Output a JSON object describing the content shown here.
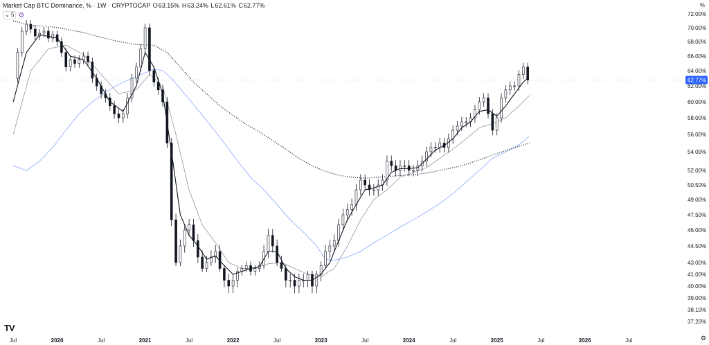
{
  "header": {
    "symbol": "Market Cap BTC Dominance, % · 1W · CRYPTOCAP",
    "o_label": "O",
    "o_value": "63.15%",
    "h_label": "H",
    "h_value": "63.24%",
    "l_label": "L",
    "l_value": "62.61%",
    "c_label": "C",
    "c_value": "62.77%"
  },
  "indicator_chip": "5",
  "scale_unit": "%",
  "current_price_label": "62.77%",
  "colors": {
    "candle": "#131722",
    "ma_fast": "#131722",
    "ma_slow": "#9598a1",
    "ma_blue": "#2962ff",
    "ma_dotted": "#131722",
    "price_tag": "#2962ff",
    "grid": "#f0f3fa"
  },
  "chart_data": {
    "type": "candlestick",
    "y_ticks": [
      "72.00%",
      "70.00%",
      "68.00%",
      "66.00%",
      "64.00%",
      "62.00%",
      "60.00%",
      "58.00%",
      "56.00%",
      "54.00%",
      "52.00%",
      "50.50%",
      "49.00%",
      "47.50%",
      "46.00%",
      "44.50%",
      "43.00%",
      "41.00%",
      "40.00%",
      "39.00%",
      "38.10%",
      "37.20%"
    ],
    "x_ticks": [
      "Jul",
      "2020",
      "Jul",
      "2021",
      "Jul",
      "2022",
      "Jul",
      "2023",
      "Jul",
      "2024",
      "Jul",
      "2025",
      "Jul",
      "2026",
      "Jul"
    ],
    "current_value": 62.77,
    "close_series": [
      {
        "t": 2019.5,
        "v": 63.0
      },
      {
        "t": 2019.55,
        "v": 66.5
      },
      {
        "t": 2019.6,
        "v": 69.5
      },
      {
        "t": 2019.65,
        "v": 70.5
      },
      {
        "t": 2019.7,
        "v": 69.8
      },
      {
        "t": 2019.75,
        "v": 68.8
      },
      {
        "t": 2019.8,
        "v": 69.2
      },
      {
        "t": 2019.85,
        "v": 69.5
      },
      {
        "t": 2019.9,
        "v": 68.5
      },
      {
        "t": 2019.95,
        "v": 69.0
      },
      {
        "t": 2020.0,
        "v": 68.0
      },
      {
        "t": 2020.05,
        "v": 66.5
      },
      {
        "t": 2020.1,
        "v": 64.5
      },
      {
        "t": 2020.15,
        "v": 65.5
      },
      {
        "t": 2020.2,
        "v": 65.0
      },
      {
        "t": 2020.25,
        "v": 65.5
      },
      {
        "t": 2020.3,
        "v": 66.0
      },
      {
        "t": 2020.35,
        "v": 65.2
      },
      {
        "t": 2020.4,
        "v": 63.0
      },
      {
        "t": 2020.45,
        "v": 62.0
      },
      {
        "t": 2020.5,
        "v": 61.0
      },
      {
        "t": 2020.55,
        "v": 60.5
      },
      {
        "t": 2020.6,
        "v": 59.5
      },
      {
        "t": 2020.65,
        "v": 58.5
      },
      {
        "t": 2020.7,
        "v": 58.0
      },
      {
        "t": 2020.75,
        "v": 58.5
      },
      {
        "t": 2020.8,
        "v": 60.5
      },
      {
        "t": 2020.85,
        "v": 63.0
      },
      {
        "t": 2020.9,
        "v": 64.5
      },
      {
        "t": 2020.95,
        "v": 67.0
      },
      {
        "t": 2021.0,
        "v": 70.0
      },
      {
        "t": 2021.05,
        "v": 64.0
      },
      {
        "t": 2021.1,
        "v": 62.5
      },
      {
        "t": 2021.15,
        "v": 61.5
      },
      {
        "t": 2021.2,
        "v": 60.0
      },
      {
        "t": 2021.25,
        "v": 55.0
      },
      {
        "t": 2021.3,
        "v": 47.0
      },
      {
        "t": 2021.35,
        "v": 43.0
      },
      {
        "t": 2021.4,
        "v": 44.5
      },
      {
        "t": 2021.45,
        "v": 46.0
      },
      {
        "t": 2021.5,
        "v": 46.5
      },
      {
        "t": 2021.55,
        "v": 45.0
      },
      {
        "t": 2021.6,
        "v": 43.5
      },
      {
        "t": 2021.65,
        "v": 42.0
      },
      {
        "t": 2021.7,
        "v": 43.0
      },
      {
        "t": 2021.75,
        "v": 43.5
      },
      {
        "t": 2021.8,
        "v": 44.0
      },
      {
        "t": 2021.85,
        "v": 42.0
      },
      {
        "t": 2021.9,
        "v": 40.5
      },
      {
        "t": 2021.95,
        "v": 40.0
      },
      {
        "t": 2022.0,
        "v": 40.5
      },
      {
        "t": 2022.05,
        "v": 41.5
      },
      {
        "t": 2022.1,
        "v": 42.0
      },
      {
        "t": 2022.15,
        "v": 42.5
      },
      {
        "t": 2022.2,
        "v": 41.5
      },
      {
        "t": 2022.25,
        "v": 42.0
      },
      {
        "t": 2022.3,
        "v": 42.5
      },
      {
        "t": 2022.35,
        "v": 44.0
      },
      {
        "t": 2022.4,
        "v": 45.5
      },
      {
        "t": 2022.45,
        "v": 44.5
      },
      {
        "t": 2022.5,
        "v": 43.0
      },
      {
        "t": 2022.55,
        "v": 42.0
      },
      {
        "t": 2022.6,
        "v": 40.5
      },
      {
        "t": 2022.65,
        "v": 40.5
      },
      {
        "t": 2022.7,
        "v": 40.0
      },
      {
        "t": 2022.75,
        "v": 40.5
      },
      {
        "t": 2022.8,
        "v": 40.5
      },
      {
        "t": 2022.85,
        "v": 41.0
      },
      {
        "t": 2022.9,
        "v": 40.0
      },
      {
        "t": 2022.95,
        "v": 41.0
      },
      {
        "t": 2023.0,
        "v": 42.5
      },
      {
        "t": 2023.05,
        "v": 44.0
      },
      {
        "t": 2023.1,
        "v": 44.5
      },
      {
        "t": 2023.15,
        "v": 45.0
      },
      {
        "t": 2023.2,
        "v": 46.5
      },
      {
        "t": 2023.25,
        "v": 47.5
      },
      {
        "t": 2023.3,
        "v": 48.0
      },
      {
        "t": 2023.35,
        "v": 48.5
      },
      {
        "t": 2023.4,
        "v": 50.0
      },
      {
        "t": 2023.45,
        "v": 51.0
      },
      {
        "t": 2023.5,
        "v": 50.5
      },
      {
        "t": 2023.55,
        "v": 50.0
      },
      {
        "t": 2023.6,
        "v": 50.0
      },
      {
        "t": 2023.65,
        "v": 50.5
      },
      {
        "t": 2023.7,
        "v": 51.0
      },
      {
        "t": 2023.75,
        "v": 53.0
      },
      {
        "t": 2023.8,
        "v": 52.5
      },
      {
        "t": 2023.85,
        "v": 52.0
      },
      {
        "t": 2023.9,
        "v": 52.5
      },
      {
        "t": 2023.95,
        "v": 52.5
      },
      {
        "t": 2024.0,
        "v": 52.0
      },
      {
        "t": 2024.05,
        "v": 52.0
      },
      {
        "t": 2024.1,
        "v": 52.5
      },
      {
        "t": 2024.15,
        "v": 53.0
      },
      {
        "t": 2024.2,
        "v": 54.0
      },
      {
        "t": 2024.25,
        "v": 54.5
      },
      {
        "t": 2024.3,
        "v": 54.5
      },
      {
        "t": 2024.35,
        "v": 55.0
      },
      {
        "t": 2024.4,
        "v": 54.5
      },
      {
        "t": 2024.45,
        "v": 55.5
      },
      {
        "t": 2024.5,
        "v": 56.5
      },
      {
        "t": 2024.55,
        "v": 57.0
      },
      {
        "t": 2024.6,
        "v": 57.5
      },
      {
        "t": 2024.65,
        "v": 57.5
      },
      {
        "t": 2024.7,
        "v": 58.0
      },
      {
        "t": 2024.75,
        "v": 59.0
      },
      {
        "t": 2024.8,
        "v": 60.0
      },
      {
        "t": 2024.85,
        "v": 60.5
      },
      {
        "t": 2024.9,
        "v": 58.5
      },
      {
        "t": 2024.95,
        "v": 56.5
      },
      {
        "t": 2025.0,
        "v": 58.0
      },
      {
        "t": 2025.05,
        "v": 60.5
      },
      {
        "t": 2025.1,
        "v": 61.5
      },
      {
        "t": 2025.15,
        "v": 62.0
      },
      {
        "t": 2025.2,
        "v": 62.0
      },
      {
        "t": 2025.25,
        "v": 63.5
      },
      {
        "t": 2025.3,
        "v": 64.5
      },
      {
        "t": 2025.35,
        "v": 62.77
      }
    ],
    "ma_fast": [
      {
        "t": 2019.5,
        "v": 60.0
      },
      {
        "t": 2019.65,
        "v": 66.5
      },
      {
        "t": 2019.8,
        "v": 69.0
      },
      {
        "t": 2020.0,
        "v": 68.5
      },
      {
        "t": 2020.15,
        "v": 66.0
      },
      {
        "t": 2020.3,
        "v": 65.5
      },
      {
        "t": 2020.45,
        "v": 63.0
      },
      {
        "t": 2020.6,
        "v": 60.0
      },
      {
        "t": 2020.75,
        "v": 58.8
      },
      {
        "t": 2020.9,
        "v": 62.0
      },
      {
        "t": 2021.0,
        "v": 66.5
      },
      {
        "t": 2021.1,
        "v": 64.5
      },
      {
        "t": 2021.2,
        "v": 61.0
      },
      {
        "t": 2021.3,
        "v": 54.0
      },
      {
        "t": 2021.4,
        "v": 47.5
      },
      {
        "t": 2021.5,
        "v": 45.5
      },
      {
        "t": 2021.6,
        "v": 44.5
      },
      {
        "t": 2021.7,
        "v": 43.3
      },
      {
        "t": 2021.8,
        "v": 43.6
      },
      {
        "t": 2021.9,
        "v": 42.5
      },
      {
        "t": 2022.0,
        "v": 41.0
      },
      {
        "t": 2022.1,
        "v": 41.5
      },
      {
        "t": 2022.2,
        "v": 42.0
      },
      {
        "t": 2022.3,
        "v": 42.3
      },
      {
        "t": 2022.4,
        "v": 44.0
      },
      {
        "t": 2022.5,
        "v": 44.0
      },
      {
        "t": 2022.6,
        "v": 42.0
      },
      {
        "t": 2022.7,
        "v": 40.8
      },
      {
        "t": 2022.8,
        "v": 40.5
      },
      {
        "t": 2022.9,
        "v": 40.5
      },
      {
        "t": 2023.0,
        "v": 41.0
      },
      {
        "t": 2023.1,
        "v": 43.0
      },
      {
        "t": 2023.2,
        "v": 45.0
      },
      {
        "t": 2023.3,
        "v": 47.0
      },
      {
        "t": 2023.4,
        "v": 48.5
      },
      {
        "t": 2023.5,
        "v": 50.0
      },
      {
        "t": 2023.6,
        "v": 50.2
      },
      {
        "t": 2023.7,
        "v": 50.5
      },
      {
        "t": 2023.8,
        "v": 51.8
      },
      {
        "t": 2023.9,
        "v": 52.2
      },
      {
        "t": 2024.0,
        "v": 52.2
      },
      {
        "t": 2024.1,
        "v": 52.3
      },
      {
        "t": 2024.2,
        "v": 53.2
      },
      {
        "t": 2024.3,
        "v": 54.2
      },
      {
        "t": 2024.4,
        "v": 54.7
      },
      {
        "t": 2024.5,
        "v": 55.5
      },
      {
        "t": 2024.6,
        "v": 56.8
      },
      {
        "t": 2024.7,
        "v": 57.5
      },
      {
        "t": 2024.8,
        "v": 58.8
      },
      {
        "t": 2024.9,
        "v": 59.0
      },
      {
        "t": 2025.0,
        "v": 58.2
      },
      {
        "t": 2025.1,
        "v": 59.5
      },
      {
        "t": 2025.2,
        "v": 61.0
      },
      {
        "t": 2025.3,
        "v": 62.5
      },
      {
        "t": 2025.35,
        "v": 63.0
      }
    ],
    "ma_slow": [
      {
        "t": 2019.5,
        "v": 56.0
      },
      {
        "t": 2019.7,
        "v": 64.0
      },
      {
        "t": 2019.9,
        "v": 67.0
      },
      {
        "t": 2020.1,
        "v": 67.5
      },
      {
        "t": 2020.3,
        "v": 66.2
      },
      {
        "t": 2020.5,
        "v": 63.5
      },
      {
        "t": 2020.7,
        "v": 61.0
      },
      {
        "t": 2020.9,
        "v": 61.5
      },
      {
        "t": 2021.05,
        "v": 63.5
      },
      {
        "t": 2021.2,
        "v": 62.0
      },
      {
        "t": 2021.35,
        "v": 56.0
      },
      {
        "t": 2021.5,
        "v": 50.0
      },
      {
        "t": 2021.65,
        "v": 46.5
      },
      {
        "t": 2021.8,
        "v": 44.8
      },
      {
        "t": 2021.95,
        "v": 43.0
      },
      {
        "t": 2022.1,
        "v": 42.0
      },
      {
        "t": 2022.25,
        "v": 42.0
      },
      {
        "t": 2022.4,
        "v": 42.8
      },
      {
        "t": 2022.55,
        "v": 43.0
      },
      {
        "t": 2022.7,
        "v": 42.0
      },
      {
        "t": 2022.85,
        "v": 41.0
      },
      {
        "t": 2023.0,
        "v": 40.8
      },
      {
        "t": 2023.15,
        "v": 42.0
      },
      {
        "t": 2023.3,
        "v": 44.5
      },
      {
        "t": 2023.45,
        "v": 47.0
      },
      {
        "t": 2023.6,
        "v": 49.0
      },
      {
        "t": 2023.75,
        "v": 50.0
      },
      {
        "t": 2023.9,
        "v": 51.3
      },
      {
        "t": 2024.05,
        "v": 51.8
      },
      {
        "t": 2024.2,
        "v": 52.3
      },
      {
        "t": 2024.35,
        "v": 53.3
      },
      {
        "t": 2024.5,
        "v": 54.3
      },
      {
        "t": 2024.65,
        "v": 55.5
      },
      {
        "t": 2024.8,
        "v": 56.8
      },
      {
        "t": 2024.95,
        "v": 57.3
      },
      {
        "t": 2025.1,
        "v": 58.0
      },
      {
        "t": 2025.25,
        "v": 59.5
      },
      {
        "t": 2025.37,
        "v": 60.8
      }
    ],
    "ma_blue": [
      {
        "t": 2019.5,
        "v": 52.5
      },
      {
        "t": 2019.65,
        "v": 52.0
      },
      {
        "t": 2019.8,
        "v": 53.0
      },
      {
        "t": 2019.95,
        "v": 54.5
      },
      {
        "t": 2020.1,
        "v": 56.5
      },
      {
        "t": 2020.25,
        "v": 58.5
      },
      {
        "t": 2020.4,
        "v": 60.0
      },
      {
        "t": 2020.55,
        "v": 61.2
      },
      {
        "t": 2020.7,
        "v": 62.2
      },
      {
        "t": 2020.85,
        "v": 63.0
      },
      {
        "t": 2021.0,
        "v": 63.7
      },
      {
        "t": 2021.1,
        "v": 64.2
      },
      {
        "t": 2021.2,
        "v": 64.0
      },
      {
        "t": 2021.3,
        "v": 63.0
      },
      {
        "t": 2021.45,
        "v": 61.0
      },
      {
        "t": 2021.6,
        "v": 59.0
      },
      {
        "t": 2021.75,
        "v": 57.0
      },
      {
        "t": 2021.9,
        "v": 55.0
      },
      {
        "t": 2022.05,
        "v": 53.0
      },
      {
        "t": 2022.2,
        "v": 51.3
      },
      {
        "t": 2022.35,
        "v": 50.0
      },
      {
        "t": 2022.5,
        "v": 48.5
      },
      {
        "t": 2022.65,
        "v": 47.0
      },
      {
        "t": 2022.8,
        "v": 45.8
      },
      {
        "t": 2022.95,
        "v": 44.5
      },
      {
        "t": 2023.05,
        "v": 43.3
      },
      {
        "t": 2023.15,
        "v": 43.2
      },
      {
        "t": 2023.3,
        "v": 43.5
      },
      {
        "t": 2023.45,
        "v": 44.0
      },
      {
        "t": 2023.6,
        "v": 44.8
      },
      {
        "t": 2023.75,
        "v": 45.5
      },
      {
        "t": 2023.9,
        "v": 46.3
      },
      {
        "t": 2024.05,
        "v": 47.0
      },
      {
        "t": 2024.2,
        "v": 47.8
      },
      {
        "t": 2024.35,
        "v": 48.6
      },
      {
        "t": 2024.5,
        "v": 49.6
      },
      {
        "t": 2024.65,
        "v": 50.8
      },
      {
        "t": 2024.8,
        "v": 52.0
      },
      {
        "t": 2024.95,
        "v": 53.3
      },
      {
        "t": 2025.1,
        "v": 54.0
      },
      {
        "t": 2025.25,
        "v": 54.8
      },
      {
        "t": 2025.37,
        "v": 55.8
      }
    ],
    "ma_dotted": [
      {
        "t": 2019.5,
        "v": 71.0
      },
      {
        "t": 2019.7,
        "v": 70.3
      },
      {
        "t": 2019.9,
        "v": 70.2
      },
      {
        "t": 2020.1,
        "v": 69.8
      },
      {
        "t": 2020.3,
        "v": 69.3
      },
      {
        "t": 2020.5,
        "v": 68.6
      },
      {
        "t": 2020.7,
        "v": 68.0
      },
      {
        "t": 2020.9,
        "v": 67.6
      },
      {
        "t": 2021.1,
        "v": 67.5
      },
      {
        "t": 2021.25,
        "v": 66.5
      },
      {
        "t": 2021.4,
        "v": 64.5
      },
      {
        "t": 2021.55,
        "v": 62.5
      },
      {
        "t": 2021.7,
        "v": 61.0
      },
      {
        "t": 2021.85,
        "v": 59.5
      },
      {
        "t": 2022.0,
        "v": 58.3
      },
      {
        "t": 2022.15,
        "v": 57.2
      },
      {
        "t": 2022.3,
        "v": 56.3
      },
      {
        "t": 2022.45,
        "v": 55.3
      },
      {
        "t": 2022.6,
        "v": 54.3
      },
      {
        "t": 2022.75,
        "v": 53.3
      },
      {
        "t": 2022.9,
        "v": 52.5
      },
      {
        "t": 2023.05,
        "v": 51.9
      },
      {
        "t": 2023.2,
        "v": 51.5
      },
      {
        "t": 2023.35,
        "v": 51.3
      },
      {
        "t": 2023.5,
        "v": 51.2
      },
      {
        "t": 2023.65,
        "v": 51.3
      },
      {
        "t": 2023.8,
        "v": 51.4
      },
      {
        "t": 2023.95,
        "v": 51.5
      },
      {
        "t": 2024.1,
        "v": 51.6
      },
      {
        "t": 2024.25,
        "v": 51.8
      },
      {
        "t": 2024.4,
        "v": 52.1
      },
      {
        "t": 2024.55,
        "v": 52.4
      },
      {
        "t": 2024.7,
        "v": 52.8
      },
      {
        "t": 2024.85,
        "v": 53.3
      },
      {
        "t": 2025.0,
        "v": 53.8
      },
      {
        "t": 2025.15,
        "v": 54.3
      },
      {
        "t": 2025.3,
        "v": 54.8
      },
      {
        "t": 2025.37,
        "v": 55.0
      }
    ]
  }
}
